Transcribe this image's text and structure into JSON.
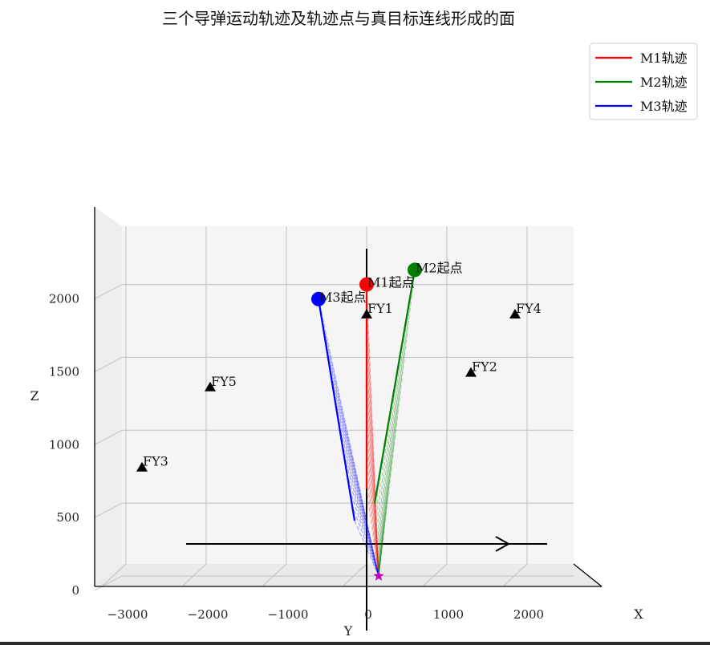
{
  "chart_data": {
    "type": "line3d",
    "title": "三个导弹运动轨迹及轨迹点与真目标连线形成的面",
    "xlabel": "X",
    "ylabel": "Y",
    "zlabel": "Z",
    "xlim": [
      -3300,
      2800
    ],
    "zlim": [
      -100,
      2300
    ],
    "x_ticks": [
      -3000,
      -2000,
      -1000,
      0,
      1000,
      2000
    ],
    "z_ticks": [
      0,
      500,
      1000,
      1500,
      2000
    ],
    "grid": true,
    "legend_position": "top-right",
    "series": [
      {
        "name": "M1轨迹",
        "color": "#ff0000",
        "start_label": "M1起点",
        "start": [
          0,
          2000
        ],
        "end": [
          0,
          600
        ]
      },
      {
        "name": "M2轨迹",
        "color": "#008000",
        "start_label": "M2起点",
        "start": [
          600,
          2100
        ],
        "end": [
          100,
          500
        ]
      },
      {
        "name": "M3轨迹",
        "color": "#0000ff",
        "start_label": "M3起点",
        "start": [
          -600,
          1900
        ],
        "end": [
          -150,
          380
        ]
      }
    ],
    "target": {
      "x": 150,
      "z": 0,
      "color": "#c000c0"
    },
    "points": [
      {
        "label": "FY1",
        "x": 0,
        "z": 1800
      },
      {
        "label": "FY2",
        "x": 1300,
        "z": 1400
      },
      {
        "label": "FY3",
        "x": -2800,
        "z": 750
      },
      {
        "label": "FY4",
        "x": 1850,
        "z": 1800
      },
      {
        "label": "FY5",
        "x": -1950,
        "z": 1300
      }
    ]
  }
}
